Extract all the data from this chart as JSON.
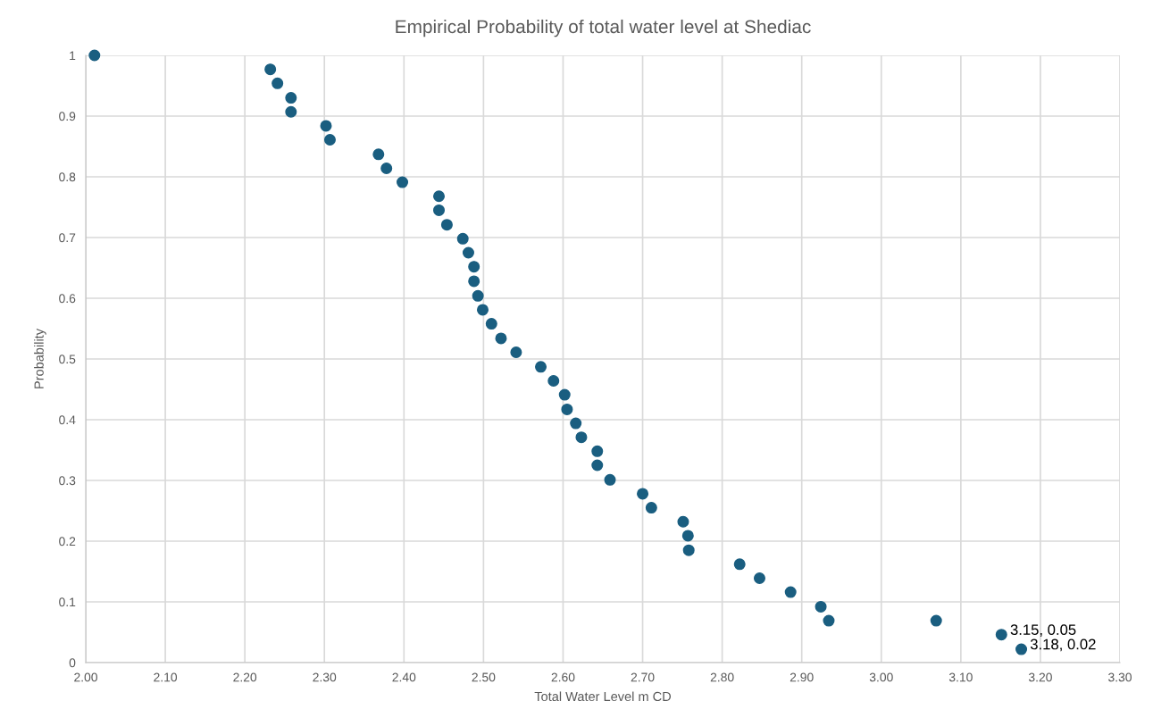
{
  "chart_data": {
    "type": "scatter",
    "title": "Empirical Probability of total water level at Shediac",
    "xlabel": "Total Water Level m CD",
    "ylabel": "Probability",
    "x": [
      2.011,
      2.232,
      2.241,
      2.258,
      2.258,
      2.302,
      2.307,
      2.368,
      2.378,
      2.398,
      2.444,
      2.444,
      2.454,
      2.474,
      2.481,
      2.488,
      2.488,
      2.493,
      2.499,
      2.51,
      2.522,
      2.541,
      2.572,
      2.588,
      2.602,
      2.605,
      2.616,
      2.623,
      2.643,
      2.643,
      2.659,
      2.7,
      2.711,
      2.751,
      2.757,
      2.758,
      2.822,
      2.847,
      2.886,
      2.924,
      2.934,
      3.069,
      3.151,
      3.176
    ],
    "values": [
      1.0,
      0.977,
      0.954,
      0.93,
      0.907,
      0.884,
      0.861,
      0.837,
      0.814,
      0.791,
      0.768,
      0.745,
      0.721,
      0.698,
      0.675,
      0.652,
      0.628,
      0.604,
      0.581,
      0.558,
      0.534,
      0.511,
      0.487,
      0.464,
      0.441,
      0.417,
      0.394,
      0.371,
      0.348,
      0.325,
      0.301,
      0.278,
      0.255,
      0.232,
      0.209,
      0.185,
      0.162,
      0.139,
      0.116,
      0.092,
      0.069,
      0.069,
      0.046,
      0.022
    ],
    "value_labels": [
      null,
      null,
      null,
      null,
      null,
      null,
      null,
      null,
      null,
      null,
      null,
      null,
      null,
      null,
      null,
      null,
      null,
      null,
      null,
      null,
      null,
      null,
      null,
      null,
      null,
      null,
      null,
      null,
      null,
      null,
      null,
      null,
      null,
      null,
      null,
      null,
      null,
      null,
      null,
      null,
      null,
      null,
      "3.15, 0.05",
      "3.18, 0.02"
    ],
    "color": "#1a5e80",
    "marker": "circle",
    "xlim": [
      2.0,
      3.3
    ],
    "xticks": [
      {
        "value": 2.0,
        "label": "2.00"
      },
      {
        "value": 2.1,
        "label": "2.10"
      },
      {
        "value": 2.2,
        "label": "2.20"
      },
      {
        "value": 2.3,
        "label": "2.30"
      },
      {
        "value": 2.4,
        "label": "2.40"
      },
      {
        "value": 2.5,
        "label": "2.50"
      },
      {
        "value": 2.6,
        "label": "2.60"
      },
      {
        "value": 2.7,
        "label": "2.70"
      },
      {
        "value": 2.8,
        "label": "2.80"
      },
      {
        "value": 2.9,
        "label": "2.90"
      },
      {
        "value": 3.0,
        "label": "3.00"
      },
      {
        "value": 3.1,
        "label": "3.10"
      },
      {
        "value": 3.2,
        "label": "3.20"
      },
      {
        "value": 3.3,
        "label": "3.30"
      }
    ],
    "ylim": [
      0,
      1
    ],
    "yticks": [
      0,
      0.1,
      0.2,
      0.3,
      0.4,
      0.5,
      0.6,
      0.7,
      0.8,
      0.9,
      1
    ],
    "grid": true
  }
}
